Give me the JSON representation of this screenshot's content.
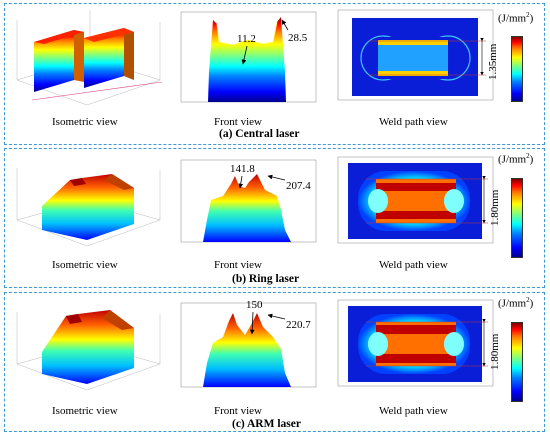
{
  "panels": [
    {
      "id": "a",
      "title": "(a) Central laser",
      "captions": {
        "isometric": "Isometric view",
        "front": "Front view",
        "weld": "Weld path view"
      },
      "annotations": {
        "valley": "11.2",
        "peak": "28.5"
      },
      "width_label": "1.35mm",
      "unit_label": "(J/mm",
      "unit_exp": "2",
      "unit_close": ")"
    },
    {
      "id": "b",
      "title": "(b) Ring laser",
      "captions": {
        "isometric": "Isometric view",
        "front": "Front view",
        "weld": "Weld path view"
      },
      "annotations": {
        "valley": "141.8",
        "peak": "207.4"
      },
      "width_label": "1.80mm",
      "unit_label": "(J/mm",
      "unit_exp": "2",
      "unit_close": ")"
    },
    {
      "id": "c",
      "title": "(c) ARM laser",
      "captions": {
        "isometric": "Isometric view",
        "front": "Front view",
        "weld": "Weld path view"
      },
      "annotations": {
        "valley": "150",
        "peak": "220.7"
      },
      "width_label": "1.80mm",
      "unit_label": "(J/mm",
      "unit_exp": "2",
      "unit_close": ")"
    }
  ],
  "colors": {
    "border": "#3a9ad9",
    "arrow": "#000000",
    "guide": "#c0392b"
  }
}
